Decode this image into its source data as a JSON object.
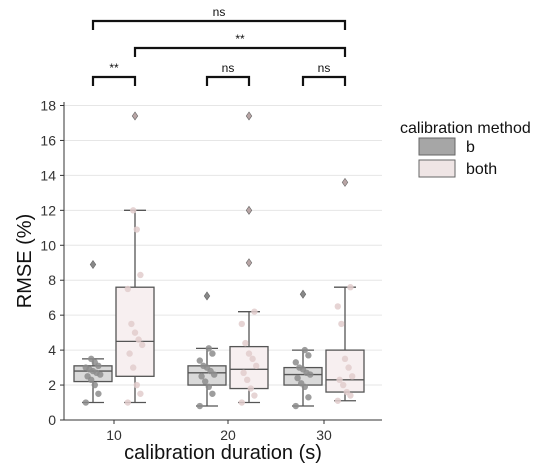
{
  "chart_data": {
    "type": "box",
    "xlabel": "calibration duration (s)",
    "ylabel": "RMSE (%)",
    "categories": [
      "10",
      "20",
      "30"
    ],
    "ylim": [
      0,
      18.2
    ],
    "yticks": [
      0,
      2,
      4,
      6,
      8,
      10,
      12,
      14,
      16,
      18
    ],
    "grid": "horizontal",
    "legend": {
      "title": "calibration method",
      "placement": "right",
      "entries": [
        "b",
        "both"
      ]
    },
    "colors": {
      "b_box": "#d9d9d9",
      "b_points": "#8c8c8c",
      "b_legend": "#a6a6a6",
      "both_box": "#f7eff0",
      "both_points": "#e2cccc",
      "both_legend": "#efe5e5",
      "box_edge": "#555555",
      "grid": "#e6e6e6",
      "sig_line": "#111111"
    },
    "series": [
      {
        "name": "b",
        "boxes": [
          {
            "category": "10",
            "whislo": 1.0,
            "q1": 2.2,
            "median": 2.8,
            "q3": 3.1,
            "whishi": 3.5,
            "fliers": [
              8.9
            ],
            "points": [
              1.0,
              1.5,
              2.0,
              2.3,
              2.5,
              2.6,
              2.7,
              2.8,
              2.9,
              3.0,
              3.1,
              3.3,
              3.5
            ]
          },
          {
            "category": "20",
            "whislo": 0.8,
            "q1": 2.0,
            "median": 2.7,
            "q3": 3.1,
            "whishi": 4.1,
            "fliers": [
              7.1
            ],
            "points": [
              0.8,
              1.5,
              1.9,
              2.2,
              2.5,
              2.6,
              2.8,
              3.0,
              3.1,
              3.4,
              3.8,
              4.1
            ]
          },
          {
            "category": "30",
            "whislo": 0.8,
            "q1": 2.0,
            "median": 2.6,
            "q3": 3.0,
            "whishi": 4.0,
            "fliers": [
              7.2
            ],
            "points": [
              0.8,
              1.3,
              1.9,
              2.1,
              2.4,
              2.6,
              2.7,
              2.9,
              3.0,
              3.3,
              3.7,
              4.0
            ]
          }
        ]
      },
      {
        "name": "both",
        "boxes": [
          {
            "category": "10",
            "whislo": 1.0,
            "q1": 2.5,
            "median": 4.5,
            "q3": 7.6,
            "whishi": 12.0,
            "fliers": [
              17.4
            ],
            "points": [
              1.0,
              1.5,
              2.0,
              3.0,
              3.8,
              4.3,
              4.6,
              5.0,
              5.5,
              7.5,
              8.3,
              10.9,
              12.0
            ]
          },
          {
            "category": "20",
            "whislo": 1.0,
            "q1": 1.8,
            "median": 2.9,
            "q3": 4.2,
            "whishi": 6.2,
            "fliers": [
              9.0,
              12.0,
              17.4
            ],
            "points": [
              1.0,
              1.4,
              1.8,
              2.3,
              2.7,
              3.1,
              3.5,
              3.8,
              4.4,
              5.5,
              6.2
            ]
          },
          {
            "category": "30",
            "whislo": 1.1,
            "q1": 1.6,
            "median": 2.3,
            "q3": 4.0,
            "whishi": 7.6,
            "fliers": [
              13.6
            ],
            "points": [
              1.1,
              1.4,
              1.6,
              2.0,
              2.3,
              2.5,
              3.0,
              3.5,
              5.5,
              6.5,
              7.6
            ]
          }
        ]
      }
    ],
    "significance": [
      {
        "from": {
          "category": "10",
          "series": "b"
        },
        "to": {
          "category": "10",
          "series": "both"
        },
        "label": "**",
        "level": 0
      },
      {
        "from": {
          "category": "20",
          "series": "b"
        },
        "to": {
          "category": "20",
          "series": "both"
        },
        "label": "ns",
        "level": 0
      },
      {
        "from": {
          "category": "30",
          "series": "b"
        },
        "to": {
          "category": "30",
          "series": "both"
        },
        "label": "ns",
        "level": 0
      },
      {
        "from": {
          "category": "10",
          "series": "both"
        },
        "to": {
          "category": "30",
          "series": "both"
        },
        "label": "**",
        "level": 1
      },
      {
        "from": {
          "category": "10",
          "series": "b"
        },
        "to": {
          "category": "30",
          "series": "both"
        },
        "label": "ns",
        "level": 2
      }
    ]
  }
}
